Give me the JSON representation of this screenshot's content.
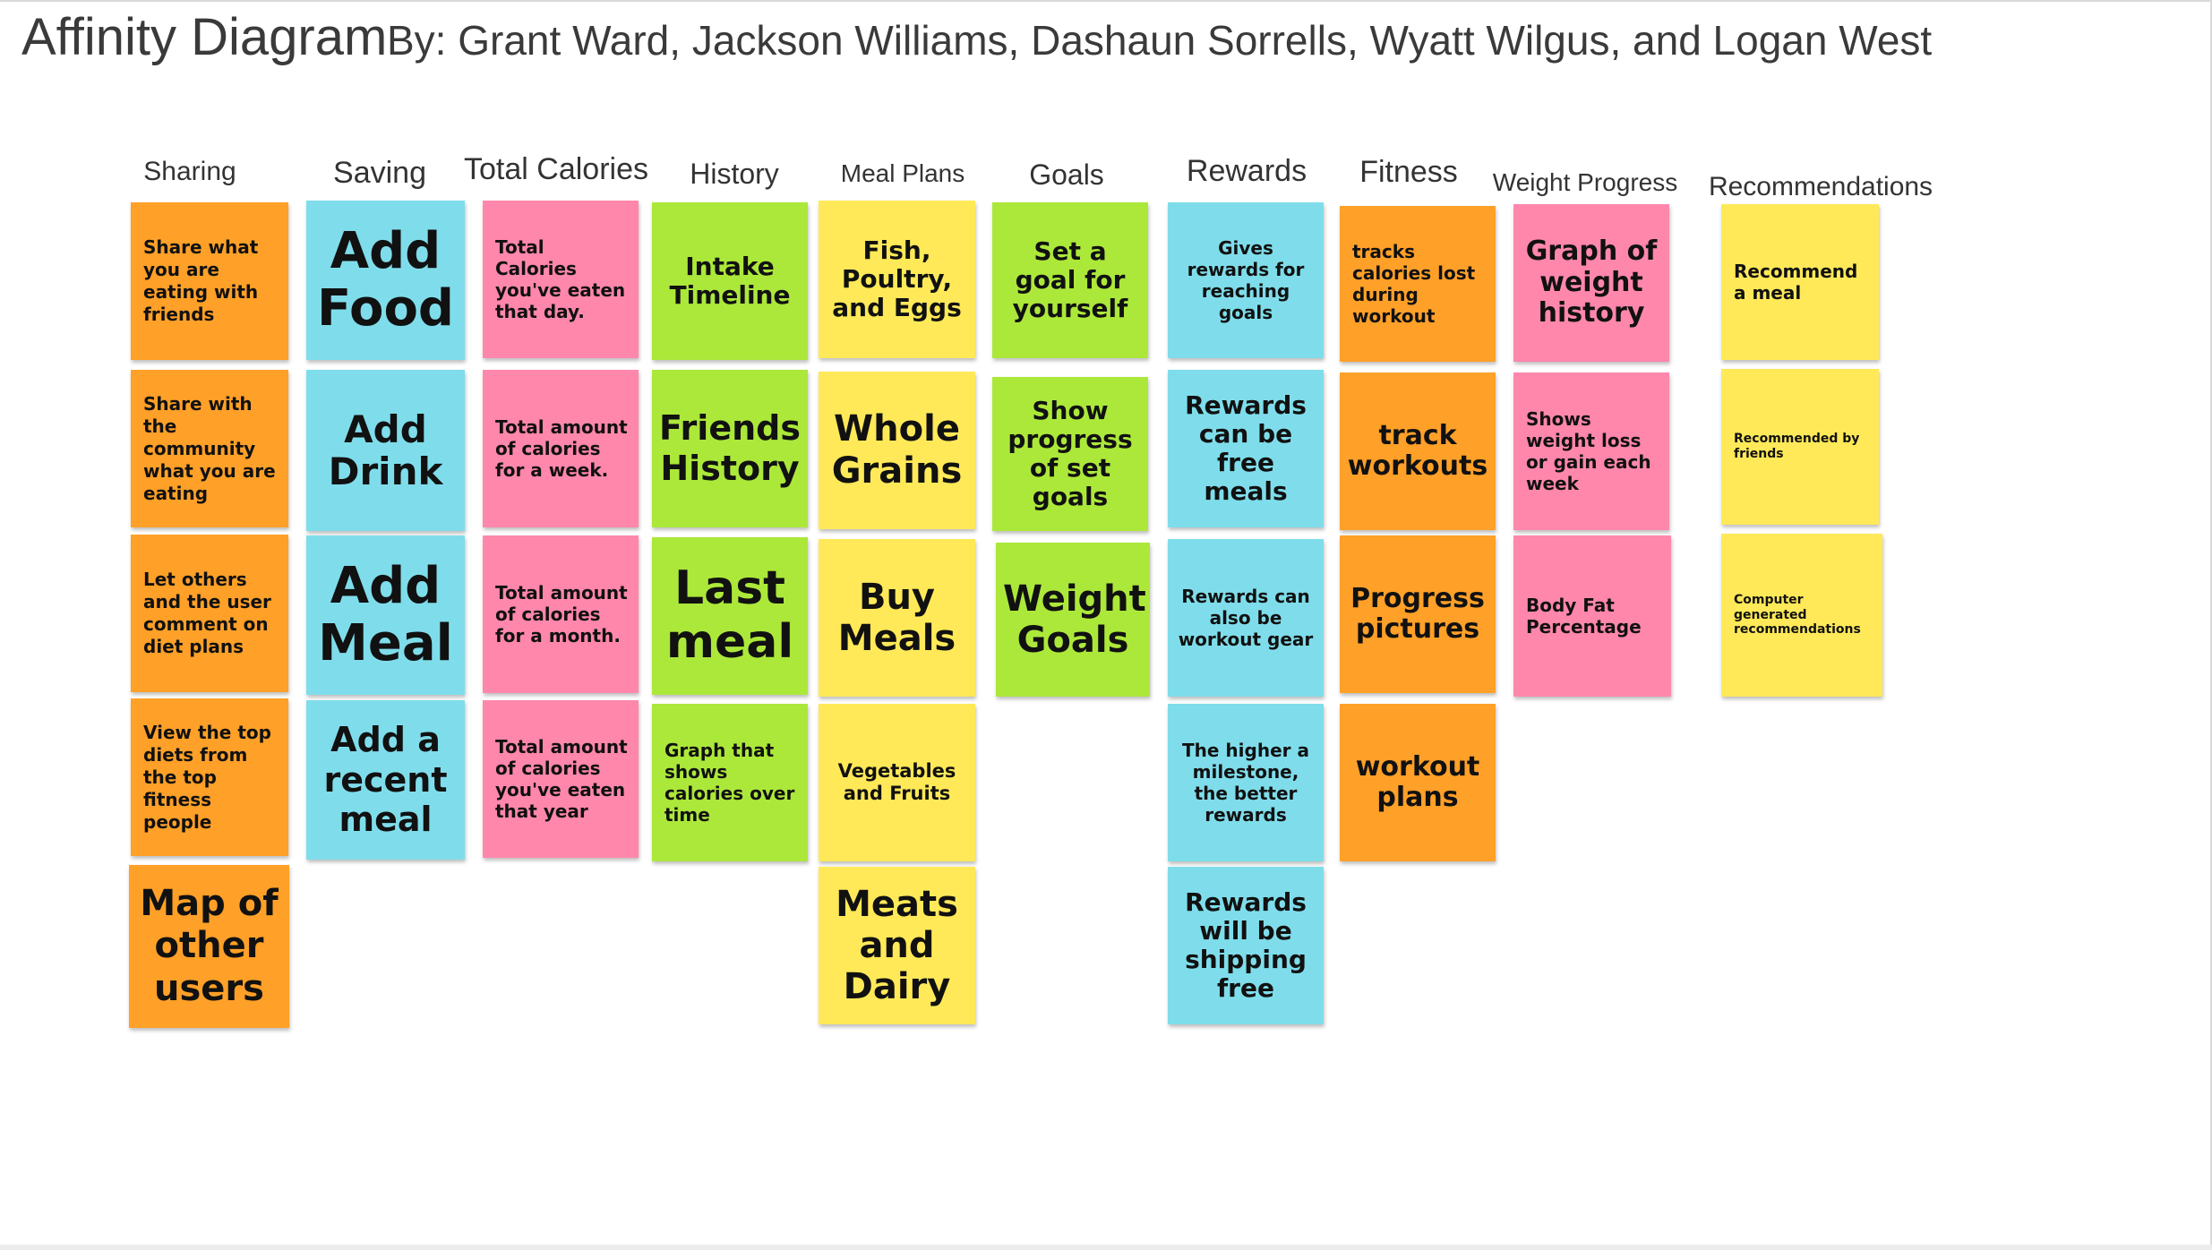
{
  "title": "Affinity Diagram",
  "subtitle": "By: Grant Ward, Jackson Williams, Dashaun Sorrells, Wyatt Wilgus, and Logan West",
  "colors": {
    "orange": "#FFA028",
    "cyan": "#7FDDEB",
    "pink": "#FF87AC",
    "green": "#ACE83A",
    "yellow": "#FFE958"
  },
  "columns": [
    {
      "label": "Sharing",
      "notes": [
        {
          "text": "Share what you are eating with friends",
          "color": "orange"
        },
        {
          "text": "Share with the community what you are eating",
          "color": "orange"
        },
        {
          "text": "Let others and the user comment on diet plans",
          "color": "orange"
        },
        {
          "text": "View the top diets from the top fitness people",
          "color": "orange"
        },
        {
          "text": "Map of other users",
          "color": "orange"
        }
      ]
    },
    {
      "label": "Saving",
      "notes": [
        {
          "text": "Add Food",
          "color": "cyan"
        },
        {
          "text": "Add Drink",
          "color": "cyan"
        },
        {
          "text": "Add Meal",
          "color": "cyan"
        },
        {
          "text": "Add a recent meal",
          "color": "cyan"
        }
      ]
    },
    {
      "label": "Total Calories",
      "notes": [
        {
          "text": "Total Calories you've eaten that day.",
          "color": "pink"
        },
        {
          "text": "Total amount of calories for a week.",
          "color": "pink"
        },
        {
          "text": "Total amount of calories for a month.",
          "color": "pink"
        },
        {
          "text": "Total amount of calories you've eaten that year",
          "color": "pink"
        }
      ]
    },
    {
      "label": "History",
      "notes": [
        {
          "text": "Intake Timeline",
          "color": "green"
        },
        {
          "text": "Friends History",
          "color": "green"
        },
        {
          "text": "Last meal",
          "color": "green"
        },
        {
          "text": "Graph that shows calories over time",
          "color": "green"
        }
      ]
    },
    {
      "label": "Meal Plans",
      "notes": [
        {
          "text": "Fish, Poultry, and Eggs",
          "color": "yellow"
        },
        {
          "text": "Whole Grains",
          "color": "yellow"
        },
        {
          "text": "Buy Meals",
          "color": "yellow"
        },
        {
          "text": "Vegetables and Fruits",
          "color": "yellow"
        },
        {
          "text": "Meats and Dairy",
          "color": "yellow"
        }
      ]
    },
    {
      "label": "Goals",
      "notes": [
        {
          "text": "Set a goal for yourself",
          "color": "green"
        },
        {
          "text": "Show progress of set goals",
          "color": "green"
        },
        {
          "text": "Weight Goals",
          "color": "green"
        }
      ]
    },
    {
      "label": "Rewards",
      "notes": [
        {
          "text": "Gives rewards for reaching goals",
          "color": "cyan"
        },
        {
          "text": "Rewards can be free meals",
          "color": "cyan"
        },
        {
          "text": "Rewards can also be workout gear",
          "color": "cyan"
        },
        {
          "text": "The higher a milestone, the better rewards",
          "color": "cyan"
        },
        {
          "text": "Rewards will be shipping free",
          "color": "cyan"
        }
      ]
    },
    {
      "label": "Fitness",
      "notes": [
        {
          "text": "tracks calories lost during workout",
          "color": "orange"
        },
        {
          "text": "track workouts",
          "color": "orange"
        },
        {
          "text": "Progress pictures",
          "color": "orange"
        },
        {
          "text": "workout plans",
          "color": "orange"
        }
      ]
    },
    {
      "label": "Weight Progress",
      "notes": [
        {
          "text": "Graph of weight history",
          "color": "pink"
        },
        {
          "text": "Shows weight loss or gain each week",
          "color": "pink"
        },
        {
          "text": "Body Fat Percentage",
          "color": "pink"
        }
      ]
    },
    {
      "label": "Recommendations",
      "notes": [
        {
          "text": "Recommend a meal",
          "color": "yellow"
        },
        {
          "text": "Recommended by friends",
          "color": "yellow"
        },
        {
          "text": "Computer generated recommendations",
          "color": "yellow"
        }
      ]
    }
  ]
}
